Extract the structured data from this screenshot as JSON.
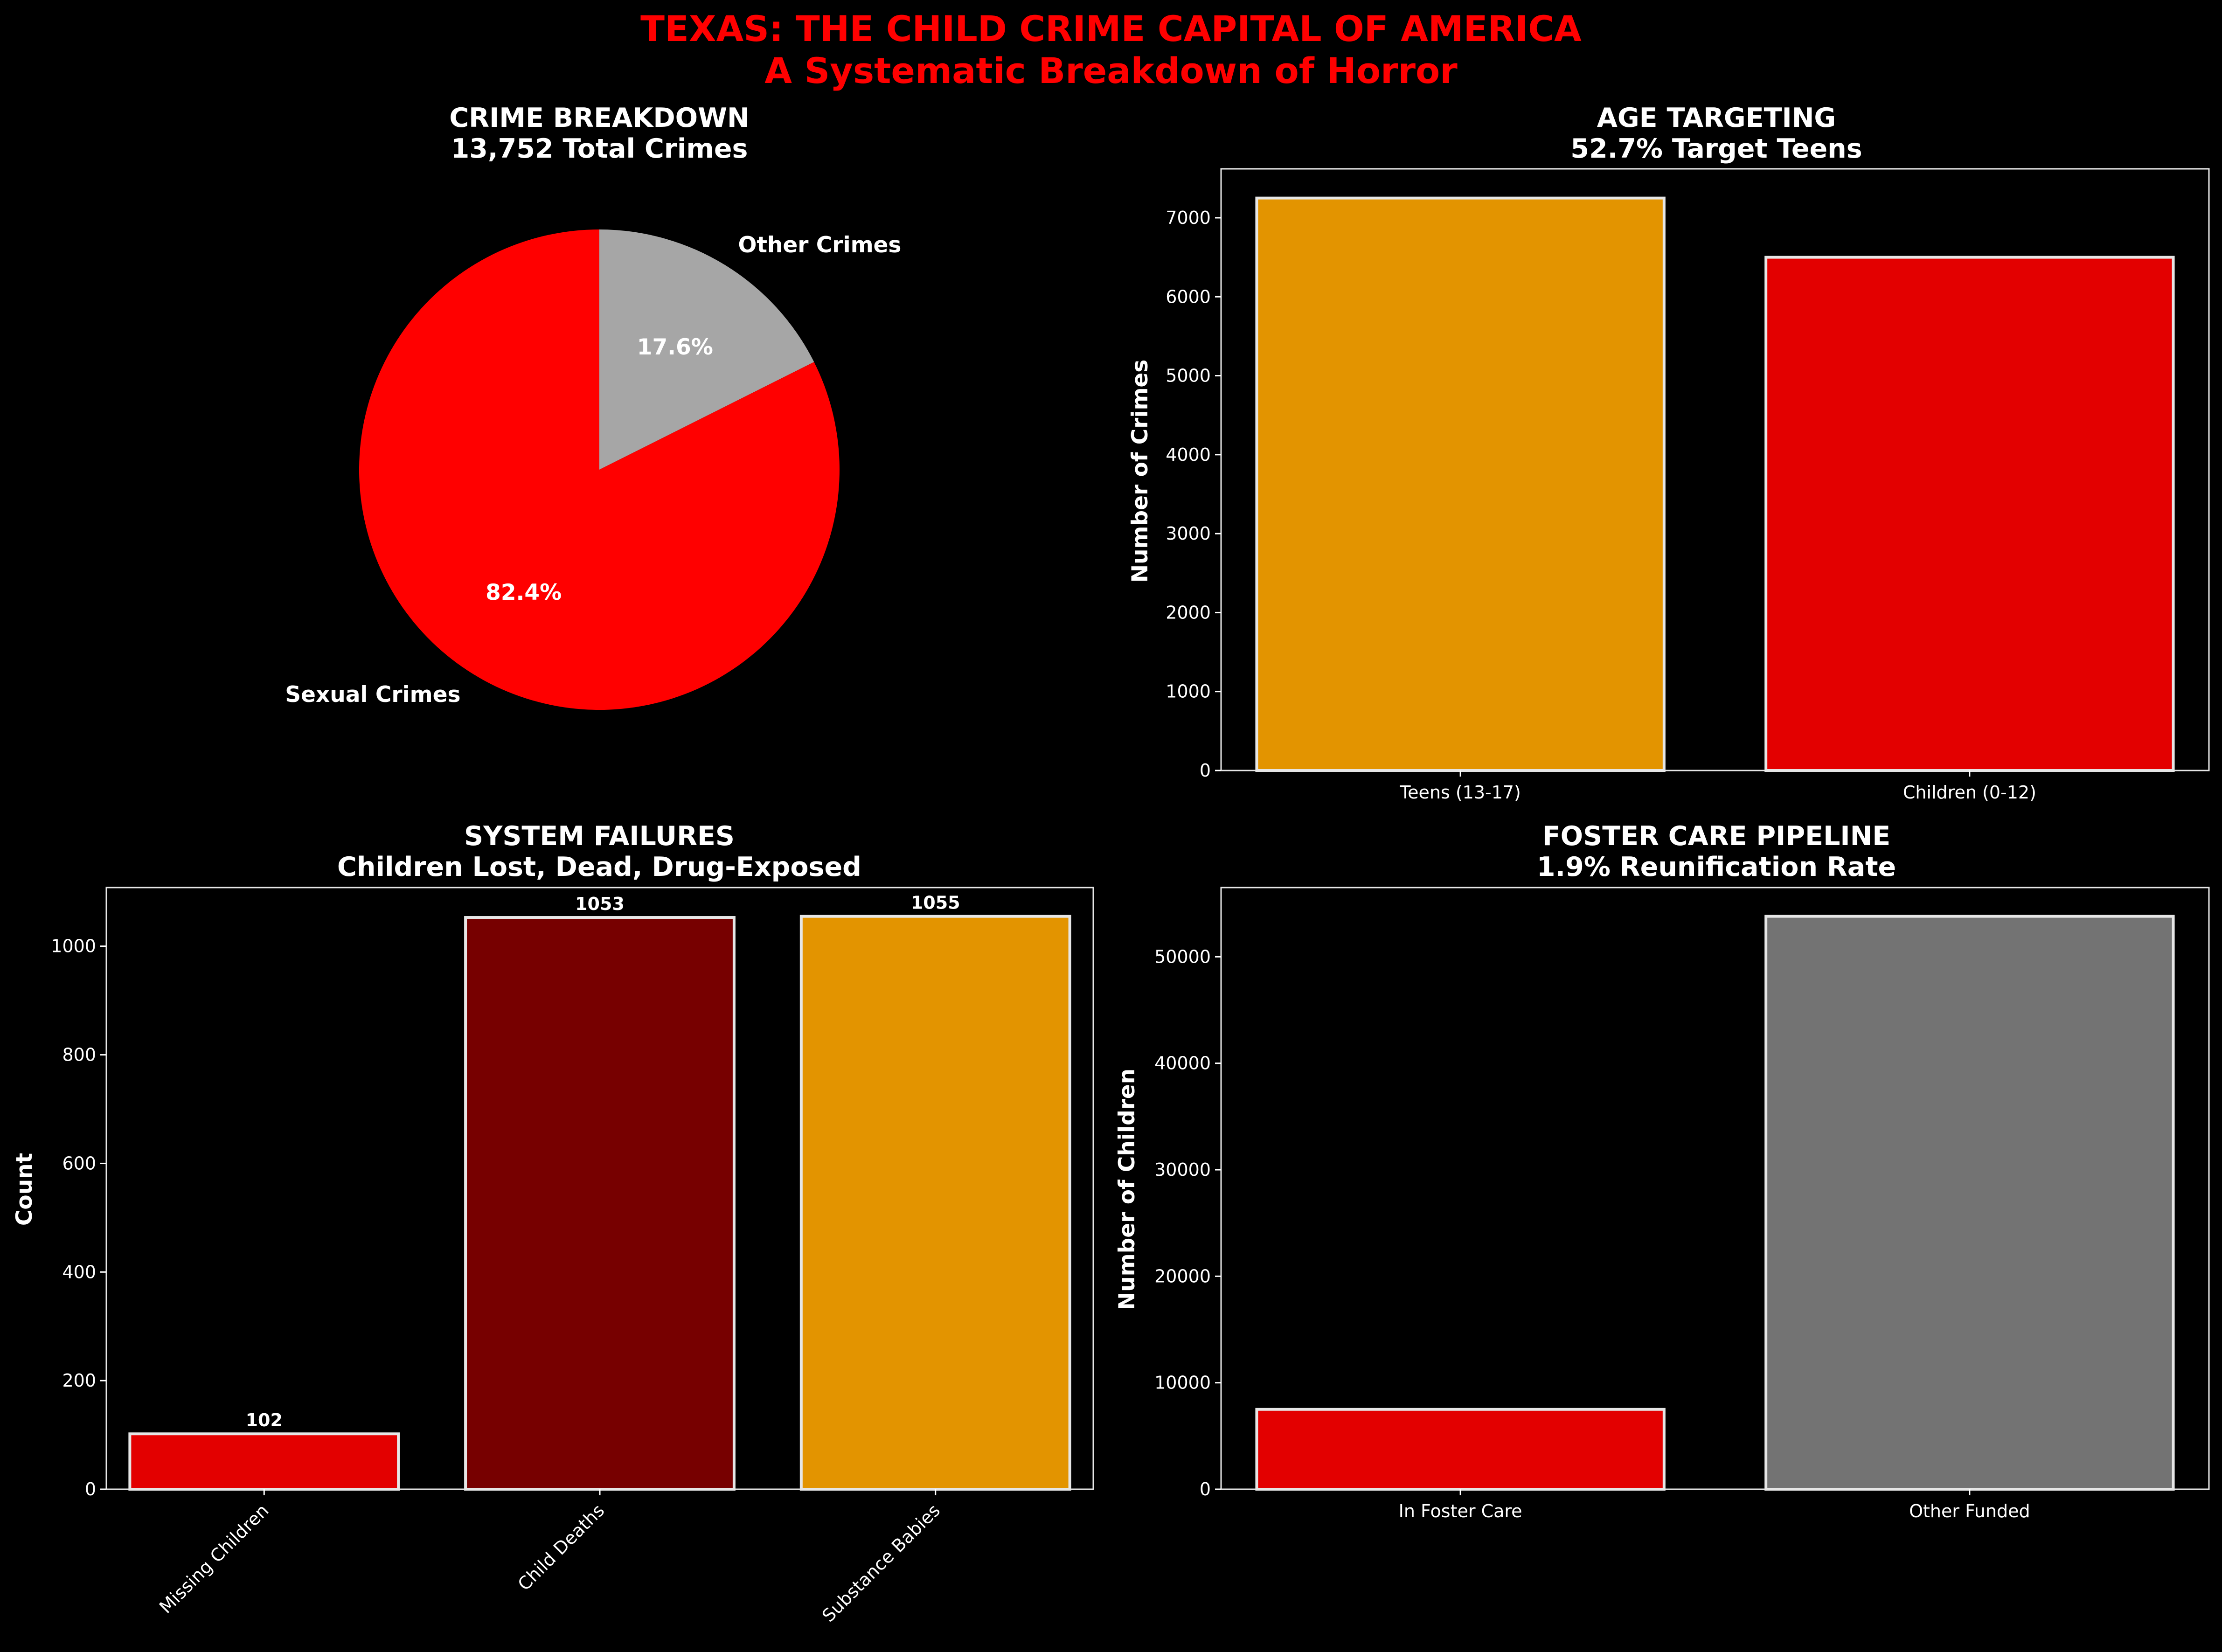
{
  "suptitle": {
    "line1": "TEXAS: THE CHILD CRIME CAPITAL OF AMERICA",
    "line2": "A Systematic Breakdown of Horror",
    "color": "#ff0000"
  },
  "chart_data": [
    {
      "type": "pie",
      "title": "CRIME BREAKDOWN",
      "subtitle": "13,752 Total Crimes",
      "slices": [
        {
          "label": "Other Crimes",
          "value": 17.6,
          "pct_label": "17.6%",
          "color": "#a6a6a6"
        },
        {
          "label": "Sexual Crimes",
          "value": 82.4,
          "pct_label": "82.4%",
          "color": "#ff0000"
        }
      ]
    },
    {
      "type": "bar",
      "title": "AGE TARGETING",
      "subtitle": "52.7% Target Teens",
      "categories": [
        "Teens (13-17)",
        "Children (0-12)"
      ],
      "values": [
        7250,
        6500
      ],
      "colors": [
        "#e39400",
        "#e30000"
      ],
      "xlabel": "",
      "ylabel": "Number of Crimes",
      "ylim": [
        0,
        7620
      ],
      "yticks": [
        0,
        1000,
        2000,
        3000,
        4000,
        5000,
        6000,
        7000
      ]
    },
    {
      "type": "bar",
      "title": "SYSTEM FAILURES",
      "subtitle": "Children Lost, Dead, Drug-Exposed",
      "categories": [
        "Missing Children",
        "Child Deaths",
        "Substance Babies"
      ],
      "values": [
        102,
        1053,
        1055
      ],
      "value_labels": [
        "102",
        "1053",
        "1055"
      ],
      "colors": [
        "#e30000",
        "#770000",
        "#e39400"
      ],
      "xlabel": "",
      "ylabel": "Count",
      "ylim": [
        0,
        1108
      ],
      "yticks": [
        0,
        200,
        400,
        600,
        800,
        1000
      ],
      "rotated_xticks": true
    },
    {
      "type": "bar",
      "title": "FOSTER CARE PIPELINE",
      "subtitle": "1.9% Reunification Rate",
      "categories": [
        "In Foster Care",
        "Other Funded"
      ],
      "values": [
        7500,
        53800
      ],
      "colors": [
        "#e30000",
        "#737373"
      ],
      "xlabel": "",
      "ylabel": "Number of Children",
      "ylim": [
        0,
        56500
      ],
      "yticks": [
        0,
        10000,
        20000,
        30000,
        40000,
        50000
      ]
    }
  ]
}
